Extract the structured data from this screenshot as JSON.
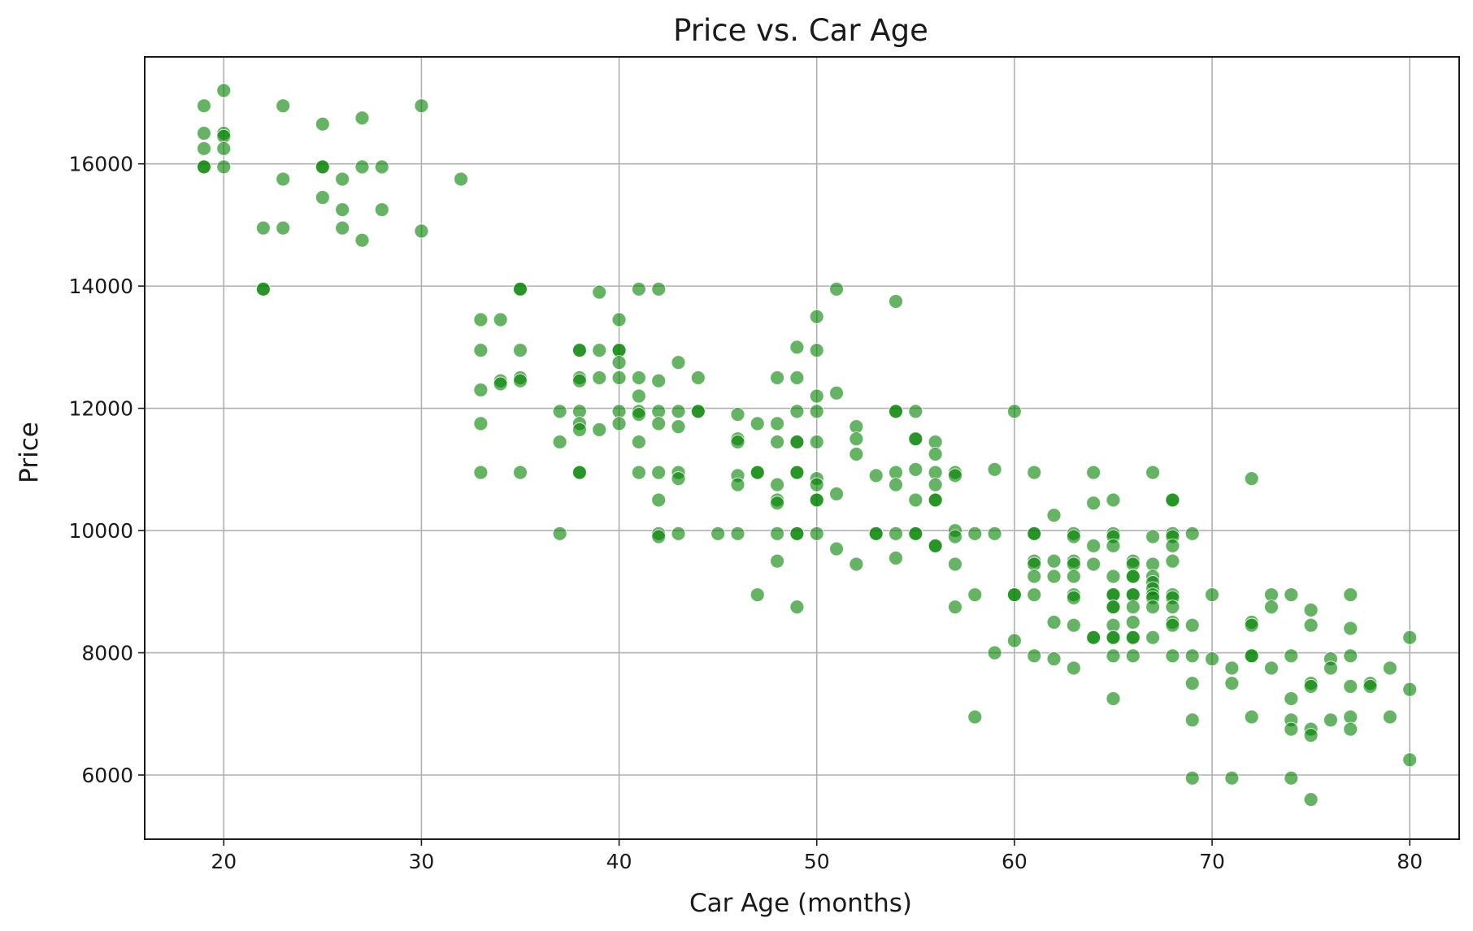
{
  "chart_data": {
    "type": "scatter",
    "title": "Price vs. Car Age",
    "xlabel": "Car Age (months)",
    "ylabel": "Price",
    "xlim": [
      16,
      82.5
    ],
    "ylim": [
      4950,
      17750
    ],
    "xticks": [
      20,
      30,
      40,
      50,
      60,
      70,
      80
    ],
    "yticks": [
      6000,
      8000,
      10000,
      12000,
      14000,
      16000
    ],
    "grid": true,
    "marker_color": "#008000",
    "marker_opacity": 0.6,
    "points": [
      [
        19,
        16950
      ],
      [
        19,
        16500
      ],
      [
        19,
        16250
      ],
      [
        19,
        15950
      ],
      [
        19,
        15950
      ],
      [
        20,
        17200
      ],
      [
        20,
        16500
      ],
      [
        20,
        16450
      ],
      [
        20,
        16250
      ],
      [
        20,
        15950
      ],
      [
        22,
        14950
      ],
      [
        22,
        13950
      ],
      [
        22,
        13950
      ],
      [
        23,
        16950
      ],
      [
        23,
        15750
      ],
      [
        23,
        14950
      ],
      [
        25,
        16650
      ],
      [
        25,
        15950
      ],
      [
        25,
        15950
      ],
      [
        25,
        15450
      ],
      [
        26,
        15750
      ],
      [
        26,
        15250
      ],
      [
        26,
        14950
      ],
      [
        27,
        16750
      ],
      [
        27,
        15950
      ],
      [
        27,
        14750
      ],
      [
        28,
        15950
      ],
      [
        28,
        15250
      ],
      [
        30,
        16950
      ],
      [
        30,
        14900
      ],
      [
        32,
        15750
      ],
      [
        33,
        13450
      ],
      [
        33,
        12950
      ],
      [
        33,
        12300
      ],
      [
        33,
        11750
      ],
      [
        33,
        10950
      ],
      [
        34,
        13450
      ],
      [
        34,
        12450
      ],
      [
        34,
        12400
      ],
      [
        35,
        13950
      ],
      [
        35,
        13950
      ],
      [
        35,
        12950
      ],
      [
        35,
        12500
      ],
      [
        35,
        12450
      ],
      [
        35,
        10950
      ],
      [
        37,
        11950
      ],
      [
        37,
        11450
      ],
      [
        37,
        9950
      ],
      [
        38,
        12950
      ],
      [
        38,
        12950
      ],
      [
        38,
        12500
      ],
      [
        38,
        12450
      ],
      [
        38,
        11950
      ],
      [
        38,
        11750
      ],
      [
        38,
        11650
      ],
      [
        38,
        10950
      ],
      [
        38,
        10950
      ],
      [
        39,
        13900
      ],
      [
        39,
        12950
      ],
      [
        39,
        12500
      ],
      [
        39,
        11650
      ],
      [
        40,
        13450
      ],
      [
        40,
        12950
      ],
      [
        40,
        12950
      ],
      [
        40,
        12750
      ],
      [
        40,
        12500
      ],
      [
        40,
        11950
      ],
      [
        40,
        11750
      ],
      [
        41,
        13950
      ],
      [
        41,
        12500
      ],
      [
        41,
        12200
      ],
      [
        41,
        11950
      ],
      [
        41,
        11900
      ],
      [
        41,
        11450
      ],
      [
        41,
        10950
      ],
      [
        42,
        13950
      ],
      [
        42,
        12450
      ],
      [
        42,
        11950
      ],
      [
        42,
        11750
      ],
      [
        42,
        10950
      ],
      [
        42,
        10500
      ],
      [
        42,
        9950
      ],
      [
        42,
        9900
      ],
      [
        43,
        12750
      ],
      [
        43,
        11950
      ],
      [
        43,
        11700
      ],
      [
        43,
        10950
      ],
      [
        43,
        10850
      ],
      [
        43,
        9950
      ],
      [
        44,
        12500
      ],
      [
        44,
        11950
      ],
      [
        44,
        11950
      ],
      [
        45,
        9950
      ],
      [
        46,
        11900
      ],
      [
        46,
        11500
      ],
      [
        46,
        11450
      ],
      [
        46,
        10900
      ],
      [
        46,
        10750
      ],
      [
        46,
        9950
      ],
      [
        47,
        11750
      ],
      [
        47,
        10950
      ],
      [
        47,
        10950
      ],
      [
        47,
        8950
      ],
      [
        48,
        12500
      ],
      [
        48,
        11750
      ],
      [
        48,
        11450
      ],
      [
        48,
        10750
      ],
      [
        48,
        10500
      ],
      [
        48,
        10450
      ],
      [
        48,
        9950
      ],
      [
        48,
        9500
      ],
      [
        49,
        13000
      ],
      [
        49,
        12500
      ],
      [
        49,
        11950
      ],
      [
        49,
        11450
      ],
      [
        49,
        11450
      ],
      [
        49,
        10950
      ],
      [
        49,
        10950
      ],
      [
        49,
        9950
      ],
      [
        49,
        9950
      ],
      [
        49,
        8750
      ],
      [
        50,
        13500
      ],
      [
        50,
        12950
      ],
      [
        50,
        12200
      ],
      [
        50,
        11950
      ],
      [
        50,
        11450
      ],
      [
        50,
        10850
      ],
      [
        50,
        10750
      ],
      [
        50,
        10500
      ],
      [
        50,
        10500
      ],
      [
        50,
        9950
      ],
      [
        51,
        13950
      ],
      [
        51,
        12250
      ],
      [
        51,
        10600
      ],
      [
        51,
        9700
      ],
      [
        52,
        11700
      ],
      [
        52,
        11500
      ],
      [
        52,
        11250
      ],
      [
        52,
        9450
      ],
      [
        53,
        10900
      ],
      [
        53,
        9950
      ],
      [
        53,
        9950
      ],
      [
        54,
        13750
      ],
      [
        54,
        11950
      ],
      [
        54,
        11950
      ],
      [
        54,
        10950
      ],
      [
        54,
        10750
      ],
      [
        54,
        9950
      ],
      [
        54,
        9550
      ],
      [
        55,
        11950
      ],
      [
        55,
        11500
      ],
      [
        55,
        11500
      ],
      [
        55,
        11000
      ],
      [
        55,
        10500
      ],
      [
        55,
        9950
      ],
      [
        55,
        9950
      ],
      [
        56,
        11450
      ],
      [
        56,
        11250
      ],
      [
        56,
        10950
      ],
      [
        56,
        10750
      ],
      [
        56,
        10500
      ],
      [
        56,
        10500
      ],
      [
        56,
        9750
      ],
      [
        56,
        9750
      ],
      [
        57,
        10950
      ],
      [
        57,
        10900
      ],
      [
        57,
        10000
      ],
      [
        57,
        9900
      ],
      [
        57,
        9450
      ],
      [
        57,
        8750
      ],
      [
        58,
        9950
      ],
      [
        58,
        8950
      ],
      [
        58,
        6950
      ],
      [
        59,
        11000
      ],
      [
        59,
        9950
      ],
      [
        59,
        8000
      ],
      [
        60,
        11950
      ],
      [
        60,
        8950
      ],
      [
        60,
        8950
      ],
      [
        60,
        8200
      ],
      [
        61,
        10950
      ],
      [
        61,
        9950
      ],
      [
        61,
        9950
      ],
      [
        61,
        9500
      ],
      [
        61,
        9450
      ],
      [
        61,
        9250
      ],
      [
        61,
        8950
      ],
      [
        61,
        7950
      ],
      [
        62,
        10250
      ],
      [
        62,
        9500
      ],
      [
        62,
        9250
      ],
      [
        62,
        8500
      ],
      [
        62,
        7900
      ],
      [
        63,
        9950
      ],
      [
        63,
        9900
      ],
      [
        63,
        9500
      ],
      [
        63,
        9450
      ],
      [
        63,
        9250
      ],
      [
        63,
        8950
      ],
      [
        63,
        8900
      ],
      [
        63,
        8450
      ],
      [
        63,
        7750
      ],
      [
        64,
        10950
      ],
      [
        64,
        10450
      ],
      [
        64,
        9750
      ],
      [
        64,
        9450
      ],
      [
        64,
        8250
      ],
      [
        64,
        8250
      ],
      [
        65,
        10500
      ],
      [
        65,
        9950
      ],
      [
        65,
        9900
      ],
      [
        65,
        9750
      ],
      [
        65,
        9250
      ],
      [
        65,
        8950
      ],
      [
        65,
        8950
      ],
      [
        65,
        8750
      ],
      [
        65,
        8750
      ],
      [
        65,
        8450
      ],
      [
        65,
        8250
      ],
      [
        65,
        8250
      ],
      [
        65,
        7950
      ],
      [
        65,
        7250
      ],
      [
        66,
        9500
      ],
      [
        66,
        9450
      ],
      [
        66,
        9250
      ],
      [
        66,
        9250
      ],
      [
        66,
        8950
      ],
      [
        66,
        8950
      ],
      [
        66,
        8750
      ],
      [
        66,
        8500
      ],
      [
        66,
        8250
      ],
      [
        66,
        8250
      ],
      [
        66,
        7950
      ],
      [
        67,
        10950
      ],
      [
        67,
        9900
      ],
      [
        67,
        9450
      ],
      [
        67,
        9250
      ],
      [
        67,
        9150
      ],
      [
        67,
        9050
      ],
      [
        67,
        8950
      ],
      [
        67,
        8900
      ],
      [
        67,
        8750
      ],
      [
        67,
        8250
      ],
      [
        68,
        10500
      ],
      [
        68,
        10500
      ],
      [
        68,
        9950
      ],
      [
        68,
        9900
      ],
      [
        68,
        9750
      ],
      [
        68,
        9500
      ],
      [
        68,
        8950
      ],
      [
        68,
        8900
      ],
      [
        68,
        8750
      ],
      [
        68,
        8500
      ],
      [
        68,
        8450
      ],
      [
        68,
        7950
      ],
      [
        69,
        9950
      ],
      [
        69,
        8450
      ],
      [
        69,
        7950
      ],
      [
        69,
        7500
      ],
      [
        69,
        6900
      ],
      [
        69,
        5950
      ],
      [
        70,
        8950
      ],
      [
        70,
        7900
      ],
      [
        71,
        7750
      ],
      [
        71,
        7500
      ],
      [
        71,
        5950
      ],
      [
        72,
        10850
      ],
      [
        72,
        8500
      ],
      [
        72,
        8450
      ],
      [
        72,
        7950
      ],
      [
        72,
        7950
      ],
      [
        72,
        6950
      ],
      [
        73,
        8950
      ],
      [
        73,
        8750
      ],
      [
        73,
        7750
      ],
      [
        74,
        8950
      ],
      [
        74,
        7950
      ],
      [
        74,
        7250
      ],
      [
        74,
        6900
      ],
      [
        74,
        6750
      ],
      [
        74,
        5950
      ],
      [
        75,
        8700
      ],
      [
        75,
        8450
      ],
      [
        75,
        7500
      ],
      [
        75,
        7450
      ],
      [
        75,
        6750
      ],
      [
        75,
        6650
      ],
      [
        75,
        5600
      ],
      [
        76,
        7900
      ],
      [
        76,
        7750
      ],
      [
        76,
        6900
      ],
      [
        77,
        8950
      ],
      [
        77,
        8400
      ],
      [
        77,
        7950
      ],
      [
        77,
        7450
      ],
      [
        77,
        6950
      ],
      [
        77,
        6750
      ],
      [
        78,
        7500
      ],
      [
        78,
        7450
      ],
      [
        79,
        7750
      ],
      [
        79,
        6950
      ],
      [
        80,
        8250
      ],
      [
        80,
        7400
      ],
      [
        80,
        6250
      ]
    ]
  }
}
